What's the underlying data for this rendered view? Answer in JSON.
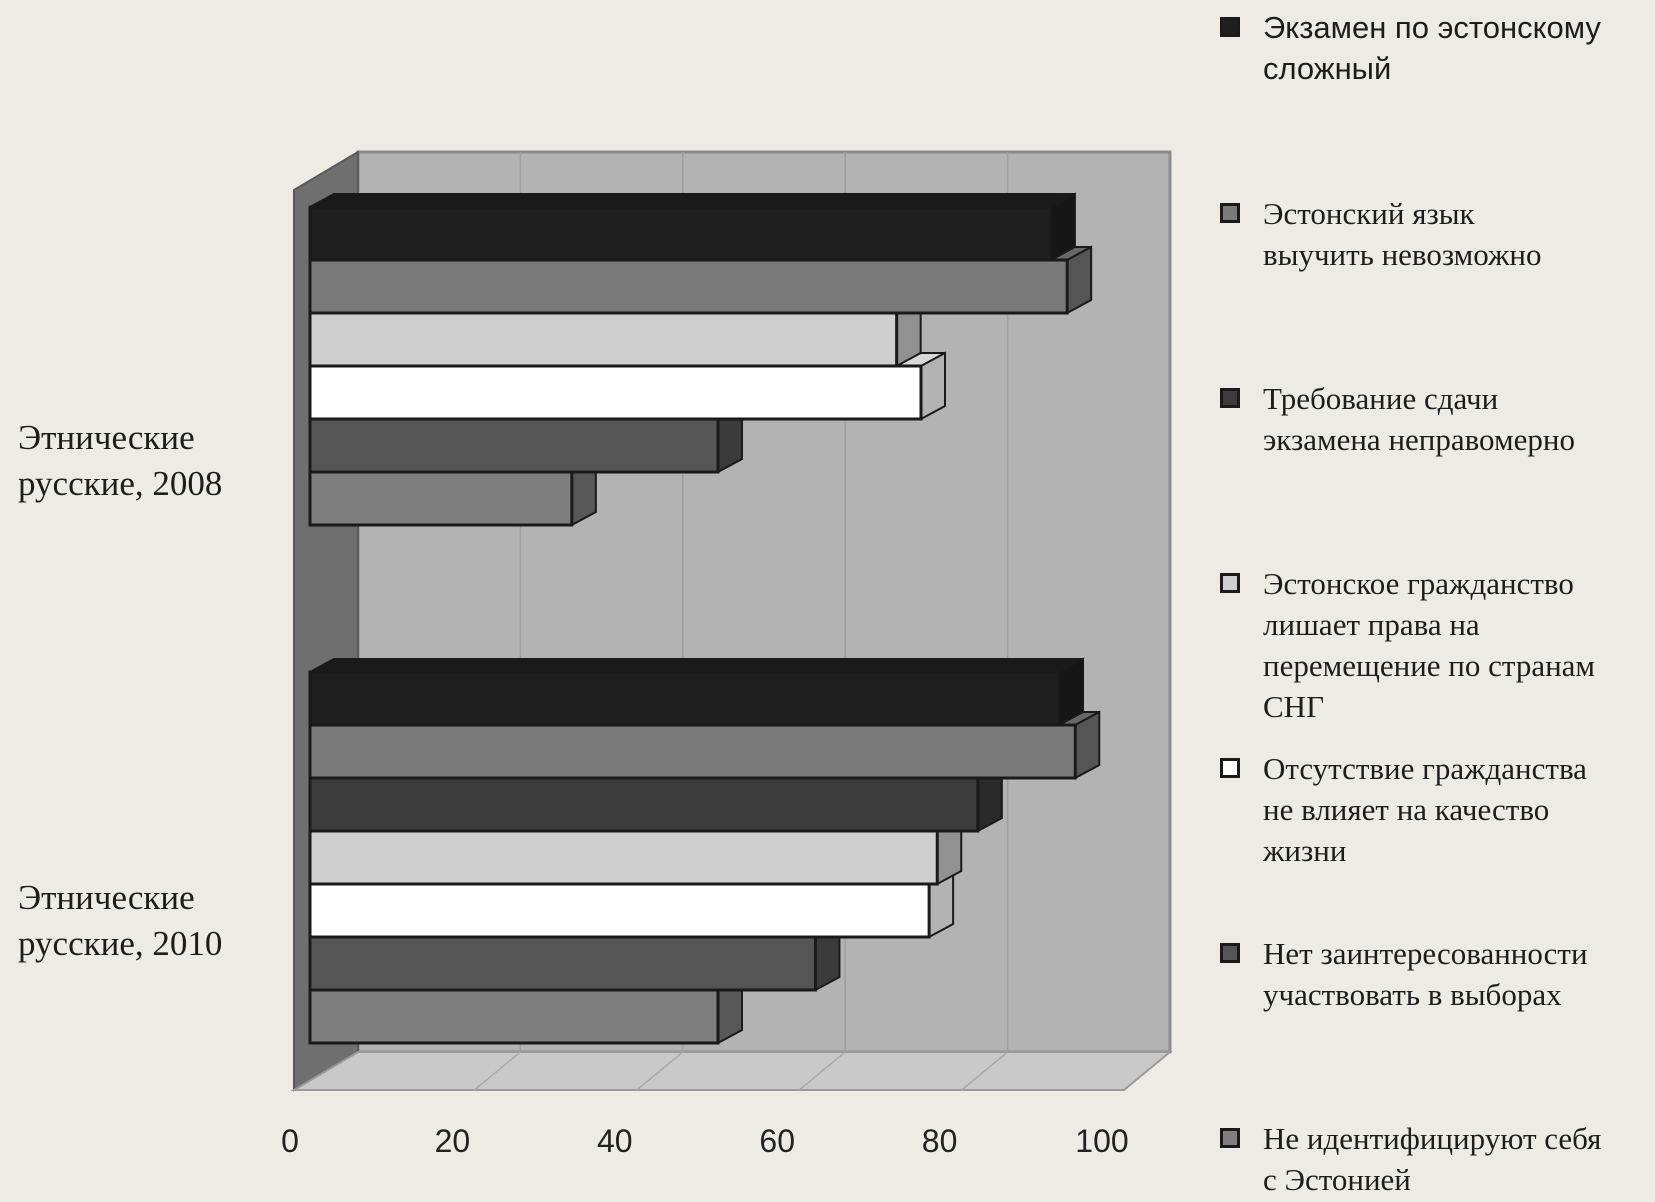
{
  "chart_data": {
    "type": "bar",
    "orientation": "horizontal",
    "style": "3d",
    "categories": [
      "Этнические\nрусские, 2008",
      "Этнические\nрусские, 2010"
    ],
    "series": [
      {
        "name": "Экзамен по эстонскому\nсложный",
        "color": "#1f1f1f",
        "values": [
          91,
          92
        ]
      },
      {
        "name": "Эстонский язык\nвыучить невозможно",
        "color": "#7a7a7a",
        "values": [
          93,
          94
        ]
      },
      {
        "name": "Требование сдачи\nэкзамена неправомерно",
        "color": "#3c3c3c",
        "values": [
          null,
          82
        ]
      },
      {
        "name": "Эстонское гражданство\nлишает права на\nперемещение по странам\nСНГ",
        "color": "#cfcfcf",
        "values": [
          72,
          77
        ]
      },
      {
        "name": "Отсутствие гражданства\nне влияет на качество\nжизни",
        "color": "#ffffff",
        "values": [
          75,
          76
        ]
      },
      {
        "name": "Нет заинтересованности\nучаствовать в выборах",
        "color": "#555555",
        "values": [
          50,
          62
        ]
      },
      {
        "name": "Не идентифицируют себя\nс Эстонией",
        "color": "#7e7e7e",
        "values": [
          32,
          50
        ]
      }
    ],
    "xlim": [
      0,
      100
    ],
    "xticks": [
      0,
      20,
      40,
      60,
      80,
      100
    ],
    "grid": true,
    "legend_position": "right"
  }
}
